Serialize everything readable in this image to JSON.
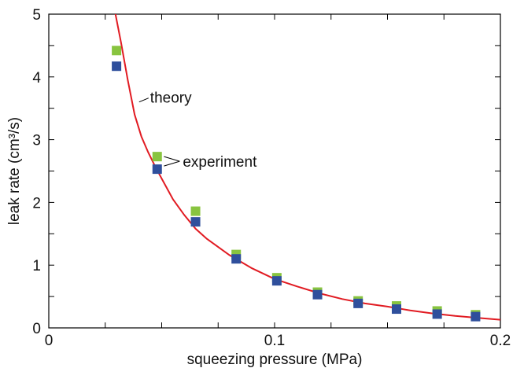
{
  "chart_data": {
    "type": "scatter",
    "xlabel": "squeezing pressure (MPa)",
    "ylabel": "leak rate (cm³/s)",
    "xlim": [
      0,
      0.2
    ],
    "ylim": [
      0,
      5
    ],
    "x_ticks": [
      0,
      0.1,
      0.2
    ],
    "x_tick_labels": [
      "0",
      "0.1",
      "0.2"
    ],
    "y_ticks": [
      0,
      1,
      2,
      3,
      4,
      5
    ],
    "y_tick_labels": [
      "0",
      "1",
      "2",
      "3",
      "4",
      "5"
    ],
    "grid": false,
    "legend": "none",
    "series": [
      {
        "kind": "line",
        "color": "#e11b22",
        "x": [
          0.029,
          0.032,
          0.035,
          0.038,
          0.041,
          0.044,
          0.047,
          0.05,
          0.055,
          0.06,
          0.065,
          0.07,
          0.08,
          0.09,
          0.1,
          0.11,
          0.12,
          0.13,
          0.14,
          0.15,
          0.16,
          0.17,
          0.18,
          0.19,
          0.2
        ],
        "y": [
          5.1,
          4.55,
          3.95,
          3.4,
          3.05,
          2.8,
          2.58,
          2.38,
          2.05,
          1.8,
          1.58,
          1.42,
          1.16,
          0.95,
          0.78,
          0.66,
          0.55,
          0.46,
          0.39,
          0.34,
          0.28,
          0.23,
          0.19,
          0.16,
          0.13
        ]
      },
      {
        "kind": "scatter",
        "color": "#88c43f",
        "x": [
          0.03,
          0.048,
          0.065,
          0.083,
          0.101,
          0.119,
          0.137,
          0.154,
          0.172,
          0.189
        ],
        "y": [
          4.42,
          2.73,
          1.86,
          1.17,
          0.8,
          0.57,
          0.43,
          0.35,
          0.27,
          0.21
        ]
      },
      {
        "kind": "scatter",
        "color": "#2f4f9c",
        "x": [
          0.03,
          0.048,
          0.065,
          0.083,
          0.101,
          0.119,
          0.137,
          0.154,
          0.172,
          0.189
        ],
        "y": [
          4.17,
          2.53,
          1.69,
          1.1,
          0.75,
          0.53,
          0.39,
          0.3,
          0.22,
          0.18
        ]
      }
    ],
    "annotations": [
      {
        "id": "theory",
        "text": "theory",
        "target": [
          0.04,
          3.6
        ]
      },
      {
        "id": "experiment",
        "text": "experiment",
        "targets": [
          [
            0.051,
            2.73
          ],
          [
            0.051,
            2.58
          ]
        ]
      }
    ]
  }
}
